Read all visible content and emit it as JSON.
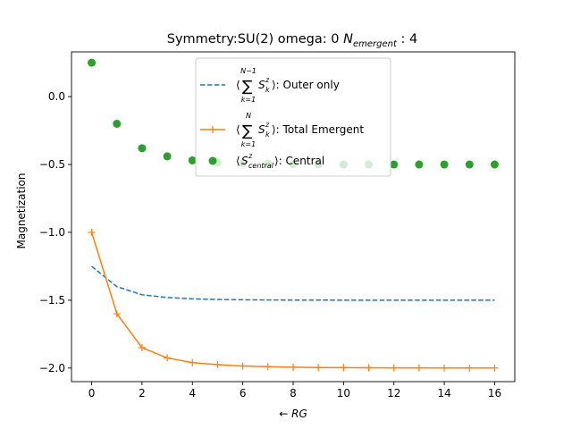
{
  "chart_data": {
    "type": "line",
    "title": {
      "prefix": "Symmetry:SU(2)  omega: 0   ",
      "n_symbol": "N",
      "n_subscript": "emergent",
      "n_value": " : 4"
    },
    "xlabel": "← RG",
    "ylabel": "Magnetization",
    "xlim": [
      -0.8,
      16.8
    ],
    "ylim": [
      -2.1,
      0.33
    ],
    "xticks": [
      0,
      2,
      4,
      6,
      8,
      10,
      12,
      14,
      16
    ],
    "yticks": [
      0.0,
      -0.5,
      -1.0,
      -1.5,
      -2.0
    ],
    "ytick_labels": [
      "0.0",
      "−0.5",
      "−1.0",
      "−1.5",
      "−2.0"
    ],
    "grid": false,
    "legend_position": "upper center",
    "x": [
      0,
      1,
      2,
      3,
      4,
      5,
      6,
      7,
      8,
      9,
      10,
      11,
      12,
      13,
      14,
      15,
      16
    ],
    "series": [
      {
        "name": "⟨Σ Sᵏᶻ⟩ (k=1 to N−1): Outer only",
        "legend_parts": {
          "open": "⟨",
          "sum": "∑",
          "upper": "N−1",
          "lower": "k=1",
          "s": "S",
          "sup": "z",
          "sub": "k",
          "close": "⟩",
          "suffix": ": Outer only"
        },
        "color": "#1f77b4",
        "style": "dashed",
        "values": [
          -1.25,
          -1.4,
          -1.46,
          -1.48,
          -1.49,
          -1.495,
          -1.497,
          -1.498,
          -1.499,
          -1.499,
          -1.5,
          -1.5,
          -1.5,
          -1.5,
          -1.5,
          -1.5,
          -1.5
        ]
      },
      {
        "name": "⟨Σ Sᵏᶻ⟩ (k=1 to N): Total Emergent",
        "legend_parts": {
          "open": "⟨",
          "sum": "∑",
          "upper": "N",
          "lower": "k=1",
          "s": "S",
          "sup": "z",
          "sub": "k",
          "close": "⟩",
          "suffix": ": Total Emergent"
        },
        "color": "#ff7f0e",
        "style": "solid-plus",
        "values": [
          -1.0,
          -1.6,
          -1.85,
          -1.925,
          -1.96,
          -1.975,
          -1.985,
          -1.99,
          -1.994,
          -1.996,
          -1.997,
          -1.998,
          -1.999,
          -1.999,
          -2.0,
          -2.0,
          -2.0
        ]
      },
      {
        "name": "⟨Sᶻ central⟩: Central",
        "legend_parts": {
          "open": "⟨",
          "s": "S",
          "sup": "z",
          "sub": "central",
          "close": "⟩",
          "suffix": ": Central"
        },
        "color": "#2ca02c",
        "style": "dots",
        "values": [
          0.25,
          -0.2,
          -0.38,
          -0.44,
          -0.47,
          -0.485,
          -0.49,
          -0.495,
          -0.498,
          -0.499,
          -0.5,
          -0.5,
          -0.5,
          -0.5,
          -0.5,
          -0.5,
          -0.5
        ]
      }
    ]
  }
}
